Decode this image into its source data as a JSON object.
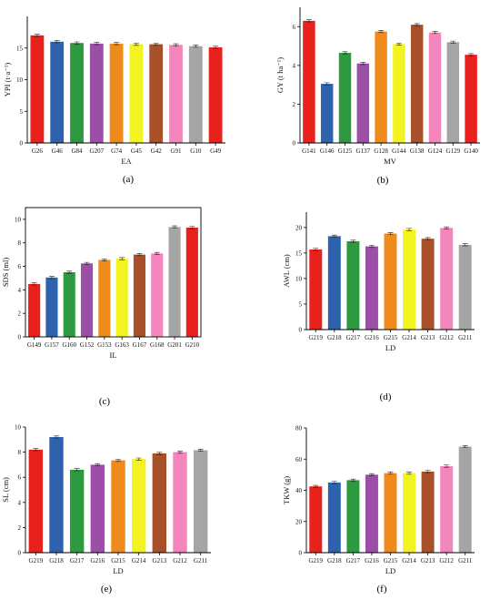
{
  "chart_data": [
    {
      "panel": "(a)",
      "type": "bar",
      "xlabel": "EA",
      "ylabel": "YPI (t·a⁻¹)",
      "ylim": [
        0,
        20
      ],
      "yticks": [
        0,
        5,
        10,
        15
      ],
      "categories": [
        "G26",
        "G46",
        "G84",
        "G207",
        "G74",
        "G45",
        "G42",
        "G91",
        "G10",
        "G49"
      ],
      "values": [
        17.0,
        16.0,
        15.8,
        15.7,
        15.7,
        15.6,
        15.6,
        15.5,
        15.3,
        15.1
      ],
      "colors": [
        "#e8211c",
        "#2f62ad",
        "#2e9a3f",
        "#9b4fa6",
        "#ef8a1c",
        "#f3f321",
        "#a8502a",
        "#f286bd",
        "#a5a5a5",
        "#e8211c"
      ]
    },
    {
      "panel": "(b)",
      "type": "bar",
      "xlabel": "MV",
      "ylabel": "GY (t ha⁻¹)",
      "ylim": [
        0,
        7
      ],
      "yticks": [
        0,
        2,
        4,
        6
      ],
      "categories": [
        "G141",
        "G146",
        "G125",
        "G137",
        "G128",
        "G144",
        "G138",
        "G124",
        "G129",
        "G140"
      ],
      "values": [
        6.3,
        3.05,
        4.65,
        4.1,
        5.75,
        5.1,
        6.1,
        5.7,
        5.2,
        4.55
      ],
      "colors": [
        "#e8211c",
        "#2f62ad",
        "#2e9a3f",
        "#9b4fa6",
        "#ef8a1c",
        "#f3f321",
        "#a8502a",
        "#f286bd",
        "#a5a5a5",
        "#e8211c"
      ]
    },
    {
      "panel": "(c)",
      "type": "bar",
      "xlabel": "IL",
      "ylabel": "SDS (ml)",
      "ylim": [
        0,
        11
      ],
      "yticks": [
        0,
        2,
        4,
        6,
        8,
        10
      ],
      "categories": [
        "G149",
        "G157",
        "G160",
        "G152",
        "G153",
        "G163",
        "G167",
        "G168",
        "G201",
        "G210"
      ],
      "values": [
        4.5,
        5.05,
        5.5,
        6.25,
        6.55,
        6.65,
        7.0,
        7.1,
        9.35,
        9.3
      ],
      "colors": [
        "#e8211c",
        "#2f62ad",
        "#2e9a3f",
        "#9b4fa6",
        "#ef8a1c",
        "#f3f321",
        "#a8502a",
        "#f286bd",
        "#a5a5a5",
        "#e8211c"
      ]
    },
    {
      "panel": "(d)",
      "type": "bar",
      "xlabel": "LD",
      "ylabel": "AWL (cm)",
      "ylim": [
        0,
        23
      ],
      "yticks": [
        0,
        5,
        10,
        15,
        20
      ],
      "categories": [
        "G219",
        "G218",
        "G217",
        "G216",
        "G215",
        "G214",
        "G213",
        "G212",
        "G211"
      ],
      "values": [
        15.7,
        18.3,
        17.3,
        16.3,
        18.8,
        19.6,
        17.8,
        19.9,
        16.6
      ],
      "colors": [
        "#e8211c",
        "#2f62ad",
        "#2e9a3f",
        "#9b4fa6",
        "#ef8a1c",
        "#f3f321",
        "#a8502a",
        "#f286bd",
        "#a5a5a5"
      ]
    },
    {
      "panel": "(e)",
      "type": "bar",
      "xlabel": "LD",
      "ylabel": "SL (cm)",
      "ylim": [
        0,
        10
      ],
      "yticks": [
        0,
        2,
        4,
        6,
        8,
        10
      ],
      "categories": [
        "G219",
        "G218",
        "G217",
        "G216",
        "G215",
        "G214",
        "G213",
        "G212",
        "G211"
      ],
      "values": [
        8.2,
        9.2,
        6.6,
        7.0,
        7.35,
        7.45,
        7.9,
        8.0,
        8.15
      ],
      "colors": [
        "#e8211c",
        "#2f62ad",
        "#2e9a3f",
        "#9b4fa6",
        "#ef8a1c",
        "#f3f321",
        "#a8502a",
        "#f286bd",
        "#a5a5a5"
      ]
    },
    {
      "panel": "(f)",
      "type": "bar",
      "xlabel": "LD",
      "ylabel": "TKW (g)",
      "ylim": [
        0,
        80
      ],
      "yticks": [
        0,
        20,
        40,
        60,
        80
      ],
      "categories": [
        "G219",
        "G218",
        "G217",
        "G216",
        "G215",
        "G214",
        "G213",
        "G212",
        "G211"
      ],
      "values": [
        42.5,
        45.0,
        46.5,
        50.0,
        51.0,
        51.0,
        52.0,
        55.5,
        68.0
      ],
      "colors": [
        "#e8211c",
        "#2f62ad",
        "#2e9a3f",
        "#9b4fa6",
        "#ef8a1c",
        "#f3f321",
        "#a8502a",
        "#f286bd",
        "#a5a5a5"
      ]
    }
  ]
}
